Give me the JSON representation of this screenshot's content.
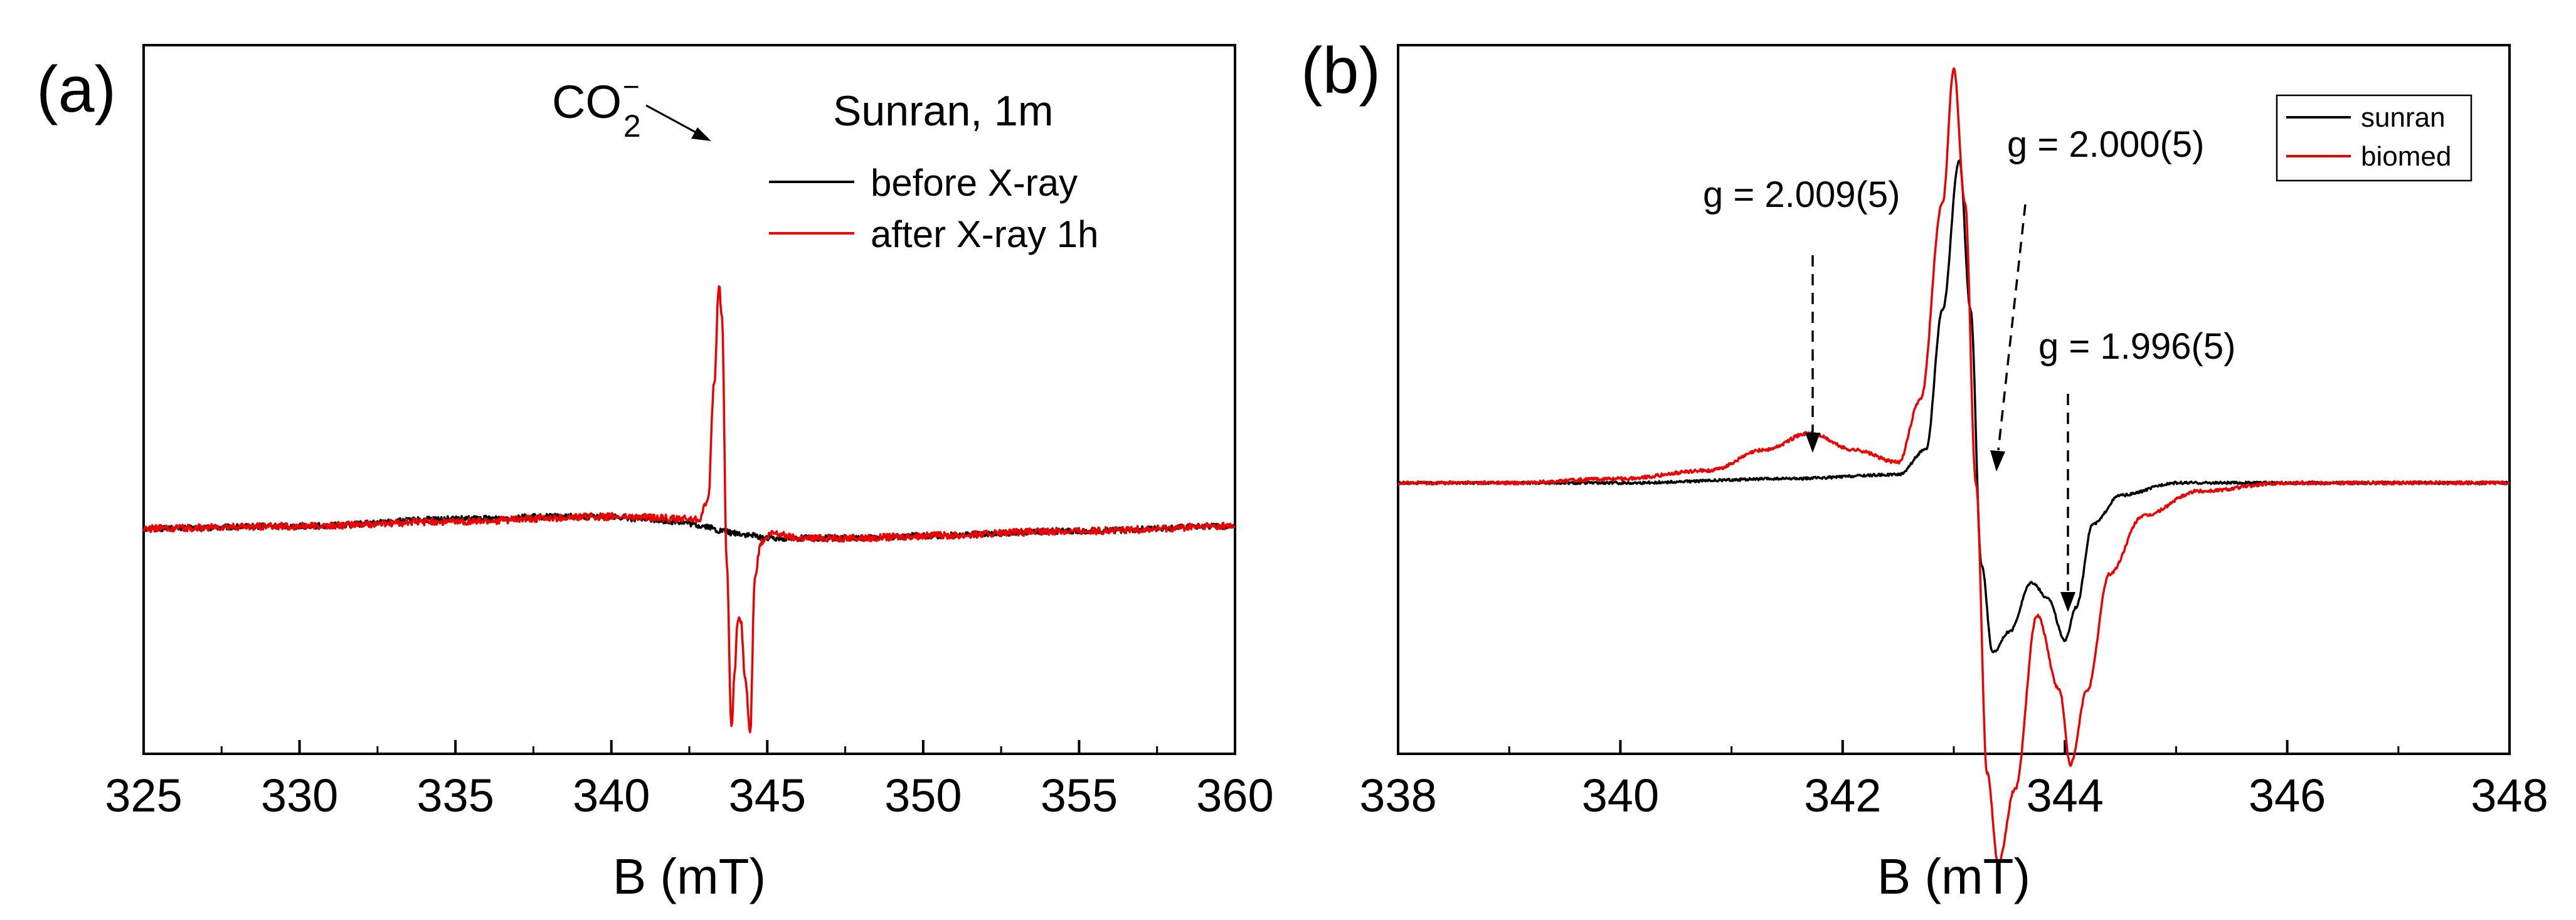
{
  "chart_data": [
    {
      "panel_label": "(a)",
      "type": "line",
      "title": "",
      "xlabel": "B (mT)",
      "ylabel": "",
      "xlim": [
        325,
        360
      ],
      "ylim": [
        -1.05,
        1.05
      ],
      "xticks": [
        "325",
        "330",
        "335",
        "340",
        "345",
        "350",
        "355",
        "360"
      ],
      "xtick_values": [
        325,
        330,
        335,
        340,
        345,
        350,
        355,
        360
      ],
      "grid": false,
      "legend": {
        "title": "Sunran, 1m",
        "position": "top-right"
      },
      "annotations": [
        {
          "text": "CO",
          "subscript": "2",
          "superscript": "−",
          "arrow_to": [
            343.4,
            0.91
          ]
        }
      ],
      "series": [
        {
          "name": "before X-ray",
          "color": "#000000",
          "noise": 0.012,
          "x": [
            325,
            330,
            335,
            338,
            340,
            341,
            342,
            343,
            343.5,
            344,
            344.5,
            345,
            346,
            348,
            350,
            355,
            360
          ],
          "y": [
            -0.06,
            -0.05,
            -0.02,
            -0.01,
            -0.01,
            -0.02,
            -0.03,
            -0.05,
            -0.07,
            -0.08,
            -0.09,
            -0.1,
            -0.1,
            -0.1,
            -0.09,
            -0.07,
            -0.05
          ]
        },
        {
          "name": "after X-ray 1h",
          "color": "#ee0000",
          "noise": 0.015,
          "x": [
            325,
            330,
            335,
            340,
            342.8,
            343.1,
            343.3,
            343.45,
            343.55,
            343.7,
            343.85,
            343.95,
            344.05,
            344.15,
            344.3,
            344.45,
            344.6,
            344.8,
            345.2,
            346,
            348,
            350,
            355,
            360
          ],
          "y": [
            -0.06,
            -0.05,
            -0.03,
            -0.01,
            -0.02,
            0.06,
            0.55,
            0.96,
            0.82,
            -0.2,
            -0.9,
            -0.68,
            -0.44,
            -0.45,
            -0.7,
            -0.92,
            -0.26,
            -0.12,
            -0.08,
            -0.1,
            -0.1,
            -0.09,
            -0.07,
            -0.05
          ]
        }
      ]
    },
    {
      "panel_label": "(b)",
      "type": "line",
      "title": "",
      "xlabel": "B (mT)",
      "ylabel": "",
      "xlim": [
        338,
        348
      ],
      "ylim": [
        -1.05,
        1.05
      ],
      "xticks": [
        "338",
        "340",
        "342",
        "344",
        "346",
        "348"
      ],
      "xtick_values": [
        338,
        340,
        342,
        344,
        346,
        348
      ],
      "grid": false,
      "legend": {
        "position": "top-right"
      },
      "annotations": [
        {
          "text": "g = 2.009(5)",
          "arrow_to": [
            341.7,
            0.04
          ]
        },
        {
          "text": "g = 2.000(5)",
          "arrow_to": [
            343.3,
            0.01
          ]
        },
        {
          "text": "g = 1.996(5)",
          "arrow_to": [
            344.05,
            -0.52
          ]
        }
      ],
      "series": [
        {
          "name": "sunran",
          "color": "#000000",
          "noise": 0.003,
          "x": [
            338,
            340,
            341.5,
            342.5,
            342.75,
            342.9,
            343.05,
            343.15,
            343.25,
            343.35,
            343.5,
            343.7,
            343.85,
            344.0,
            344.1,
            344.25,
            344.5,
            345,
            346,
            348
          ],
          "y": [
            0.0,
            0.0,
            0.01,
            0.02,
            0.08,
            0.42,
            0.78,
            0.42,
            -0.2,
            -0.41,
            -0.36,
            -0.24,
            -0.28,
            -0.38,
            -0.3,
            -0.1,
            -0.03,
            0.0,
            0.0,
            0.0
          ]
        },
        {
          "name": "biomed",
          "color": "#ee0000",
          "noise": 0.004,
          "x": [
            338,
            339,
            340,
            340.8,
            341.3,
            341.7,
            342.1,
            342.5,
            342.7,
            342.9,
            343.0,
            343.1,
            343.2,
            343.3,
            343.4,
            343.55,
            343.75,
            343.95,
            344.05,
            344.2,
            344.4,
            344.7,
            345.2,
            346,
            348
          ],
          "y": [
            0.0,
            0.0,
            0.01,
            0.03,
            0.08,
            0.12,
            0.08,
            0.05,
            0.2,
            0.68,
            1.0,
            0.68,
            0.0,
            -0.7,
            -0.92,
            -0.74,
            -0.32,
            -0.5,
            -0.68,
            -0.5,
            -0.22,
            -0.08,
            -0.02,
            0.0,
            0.0
          ]
        }
      ]
    }
  ]
}
